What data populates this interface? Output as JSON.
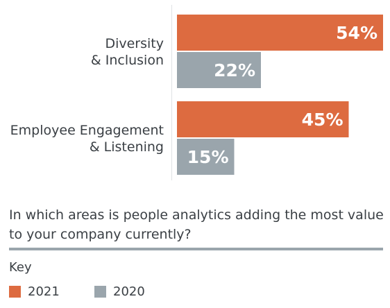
{
  "chart_data": {
    "type": "bar",
    "orientation": "horizontal",
    "categories": [
      [
        "Diversity",
        "& Inclusion"
      ],
      [
        "Employee Engagement",
        "& Listening"
      ]
    ],
    "series": [
      {
        "name": "2021",
        "color": "#dd6b40",
        "values": [
          54,
          45
        ],
        "labels": [
          "54%",
          "45%"
        ]
      },
      {
        "name": "2020",
        "color": "#9aa5ac",
        "values": [
          22,
          15
        ],
        "labels": [
          "22%",
          "15%"
        ]
      }
    ],
    "xlim": [
      0,
      100
    ],
    "grid": false,
    "legend_placement": "bottom-left"
  },
  "question": "In which areas is people analytics adding the most value to your company currently?",
  "legend": {
    "title": "Key",
    "items": [
      {
        "label": "2021",
        "color": "#dd6b40"
      },
      {
        "label": "2020",
        "color": "#9aa5ac"
      }
    ]
  }
}
